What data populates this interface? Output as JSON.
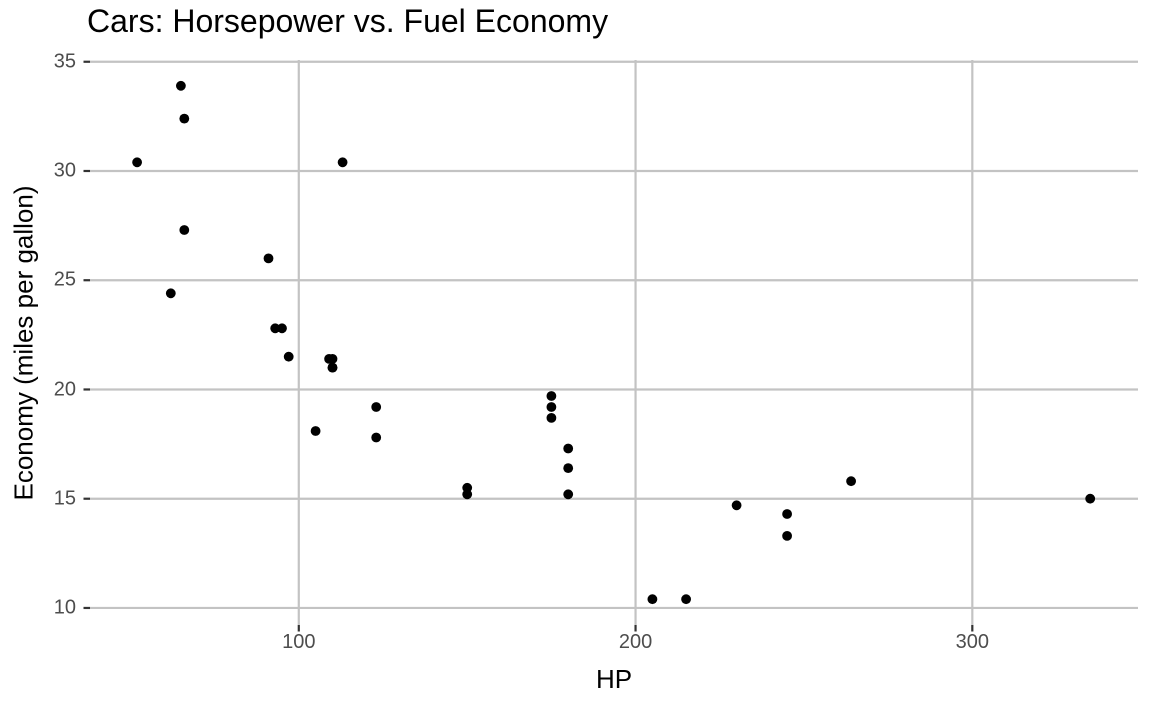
{
  "figure": {
    "background_color": "#FFFFFF"
  },
  "chart_data": {
    "type": "scatter",
    "title": "Cars: Horsepower vs. Fuel Economy",
    "xlabel": "HP",
    "ylabel": "Economy (miles per gallon)",
    "x_ticks": [
      100,
      200,
      300
    ],
    "y_ticks": [
      10,
      15,
      20,
      25,
      30,
      35
    ],
    "xlim": [
      38,
      349.2
    ],
    "ylim": [
      9.22,
      35.08
    ],
    "grid": "major-only",
    "legend": "none",
    "style": {
      "point_color": "#000000",
      "point_radius": 4.9,
      "grid_color": "#C3C3C3",
      "grid_width": 2.2,
      "tick_mark_color": "#333333",
      "tick_mark_width": 2.2,
      "tick_label_color": "#4D4D4D"
    },
    "series": [
      {
        "name": "cars",
        "points": [
          [
            110,
            21.0
          ],
          [
            110,
            21.0
          ],
          [
            93,
            22.8
          ],
          [
            110,
            21.4
          ],
          [
            175,
            18.7
          ],
          [
            105,
            18.1
          ],
          [
            245,
            14.3
          ],
          [
            62,
            24.4
          ],
          [
            95,
            22.8
          ],
          [
            123,
            19.2
          ],
          [
            123,
            17.8
          ],
          [
            180,
            16.4
          ],
          [
            180,
            17.3
          ],
          [
            180,
            15.2
          ],
          [
            205,
            10.4
          ],
          [
            215,
            10.4
          ],
          [
            230,
            14.7
          ],
          [
            66,
            32.4
          ],
          [
            52,
            30.4
          ],
          [
            65,
            33.9
          ],
          [
            97,
            21.5
          ],
          [
            150,
            15.5
          ],
          [
            150,
            15.2
          ],
          [
            245,
            13.3
          ],
          [
            175,
            19.2
          ],
          [
            66,
            27.3
          ],
          [
            91,
            26.0
          ],
          [
            113,
            30.4
          ],
          [
            264,
            15.8
          ],
          [
            175,
            19.7
          ],
          [
            335,
            15.0
          ],
          [
            109,
            21.4
          ]
        ]
      }
    ]
  }
}
